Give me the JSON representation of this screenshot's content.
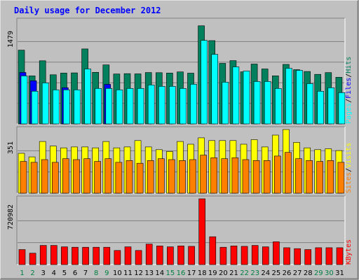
{
  "chart_data": {
    "type": "bar",
    "title": "Daily usage for December 2012",
    "days": [
      "1",
      "2",
      "3",
      "4",
      "5",
      "6",
      "7",
      "8",
      "9",
      "10",
      "11",
      "12",
      "13",
      "14",
      "15",
      "16",
      "17",
      "18",
      "19",
      "20",
      "21",
      "22",
      "23",
      "24",
      "25",
      "26",
      "27",
      "28",
      "29",
      "30",
      "31"
    ],
    "weekend_days": [
      "1",
      "2",
      "8",
      "9",
      "15",
      "16",
      "22",
      "23",
      "29",
      "30"
    ],
    "panels": [
      {
        "name": "hits-files-pages",
        "ymax": 1479,
        "ymax_label": "1479",
        "series": [
          {
            "name": "Hits",
            "color": "#00805c",
            "values": [
              1060,
              690,
              908,
              706,
              730,
              733,
              1078,
              742,
              848,
              717,
              722,
              719,
              738,
              736,
              730,
              748,
              729,
              1411,
              1197,
              870,
              910,
              749,
              860,
              790,
              691,
              855,
              780,
              754,
              712,
              737,
              670
            ]
          },
          {
            "name": "Files",
            "color": "#0000ff",
            "values": [
              740,
              620,
              0,
              0,
              520,
              0,
              0,
              0,
              568,
              0,
              0,
              0,
              0,
              0,
              0,
              0,
              0,
              0,
              0,
              0,
              0,
              0,
              0,
              0,
              0,
              0,
              0,
              0,
              0,
              0,
              0
            ]
          },
          {
            "name": "Pages",
            "color": "#00ffff",
            "values": [
              690,
              470,
              590,
              490,
              490,
              490,
              790,
              510,
              510,
              490,
              510,
              510,
              560,
              540,
              540,
              510,
              570,
              1200,
              1000,
              600,
              820,
              760,
              610,
              610,
              510,
              800,
              770,
              580,
              470,
              520,
              450
            ]
          }
        ],
        "legend": [
          "Pages",
          "Files",
          "Hits"
        ]
      },
      {
        "name": "visits-sites",
        "ymax": 351,
        "ymax_label": "351",
        "series": [
          {
            "name": "Visits",
            "color": "#ffff00",
            "values": [
              220,
              200,
              285,
              260,
              250,
              255,
              255,
              250,
              285,
              250,
              255,
              290,
              255,
              240,
              230,
              285,
              270,
              305,
              290,
              290,
              290,
              270,
              295,
              255,
              320,
              351,
              280,
              250,
              240,
              245,
              235
            ]
          },
          {
            "name": "Sites",
            "color": "#ff8000",
            "values": [
              175,
              170,
              185,
              170,
              190,
              185,
              190,
              175,
              190,
              170,
              180,
              165,
              180,
              190,
              185,
              180,
              185,
              210,
              195,
              190,
              195,
              185,
              180,
              180,
              205,
              225,
              190,
              180,
              175,
              180,
              170
            ]
          }
        ],
        "legend": [
          "Sites",
          "Visits"
        ]
      },
      {
        "name": "kbytes",
        "ymax": 720982,
        "ymax_label": "720982",
        "series": [
          {
            "name": "KBytes",
            "color": "#ff0000",
            "values": [
              165000,
              125000,
              210000,
              210000,
              195000,
              190000,
              190000,
              190000,
              190000,
              155000,
              195000,
              155000,
              225000,
              205000,
              195000,
              205000,
              200000,
              720982,
              305000,
              190000,
              205000,
              200000,
              210000,
              195000,
              250000,
              185000,
              175000,
              165000,
              185000,
              185000,
              185000
            ]
          }
        ],
        "legend": [
          "KBytes"
        ]
      }
    ],
    "legend_separator": "/",
    "grid": true,
    "colors": {
      "background": "#c0c0c0",
      "plot": "#c0c0c0",
      "grid": "#808080",
      "weekday_label": "#000000",
      "weekend_label": "#008040",
      "title": "#0000ff"
    }
  }
}
